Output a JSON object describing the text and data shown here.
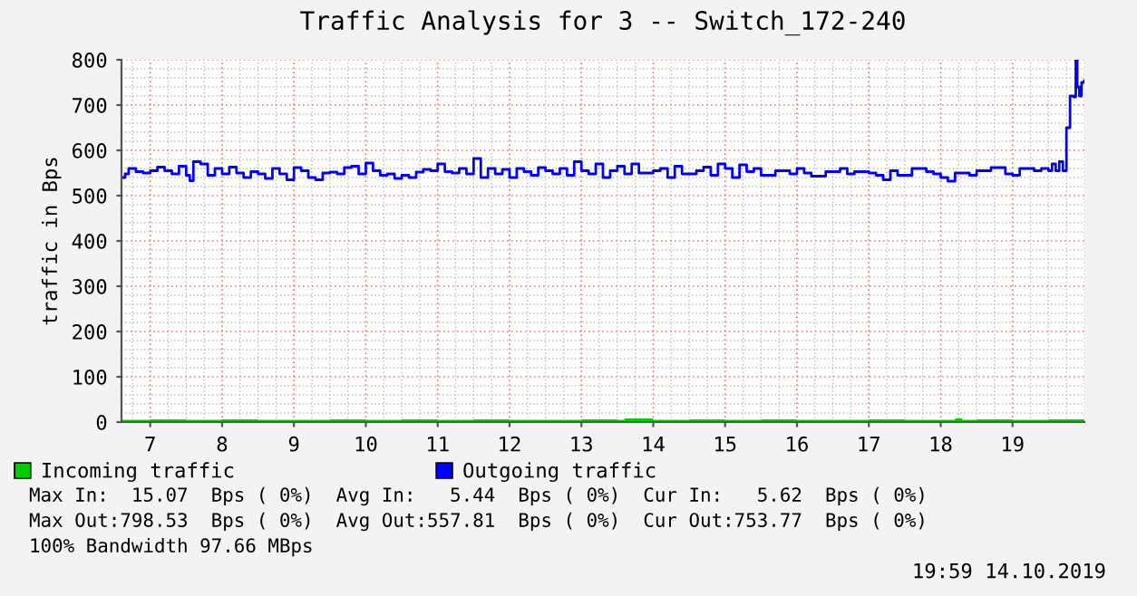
{
  "chart_data": {
    "type": "step",
    "title": "Traffic Analysis for 3 -- Switch_172-240",
    "ylabel": "traffic in Bps",
    "xlim": [
      6.6,
      20.0
    ],
    "xticks": [
      7,
      8,
      9,
      10,
      11,
      12,
      13,
      14,
      15,
      16,
      17,
      18,
      19
    ],
    "ylim": [
      0,
      800
    ],
    "yticks": [
      0,
      100,
      200,
      300,
      400,
      500,
      600,
      700,
      800
    ],
    "grid": true,
    "legend": "bottom left",
    "series": [
      {
        "name": "Incoming traffic",
        "type": "area",
        "color": "#00cc00",
        "x": [
          6.6,
          7.0,
          7.5,
          8.0,
          8.5,
          9.0,
          9.5,
          10.0,
          10.5,
          11.0,
          11.5,
          12.0,
          12.5,
          13.0,
          13.5,
          13.6,
          14.0,
          14.5,
          15.0,
          15.5,
          16.0,
          16.5,
          17.0,
          17.5,
          18.0,
          18.2,
          18.3,
          18.5,
          19.0,
          19.5,
          20.0
        ],
        "values": [
          5,
          6,
          5,
          6,
          5,
          5,
          6,
          5,
          6,
          5,
          6,
          5,
          5,
          6,
          5,
          8,
          5,
          6,
          5,
          6,
          5,
          5,
          6,
          5,
          5,
          8,
          5,
          6,
          5,
          6,
          6
        ]
      },
      {
        "name": "Outgoing traffic",
        "color": "#0000ff",
        "x": [
          6.6,
          6.65,
          6.7,
          6.8,
          6.9,
          7.0,
          7.1,
          7.2,
          7.3,
          7.4,
          7.5,
          7.55,
          7.6,
          7.7,
          7.8,
          7.9,
          8.0,
          8.1,
          8.2,
          8.3,
          8.4,
          8.5,
          8.6,
          8.7,
          8.8,
          8.9,
          9.0,
          9.1,
          9.2,
          9.3,
          9.4,
          9.5,
          9.6,
          9.7,
          9.8,
          9.9,
          10.0,
          10.1,
          10.2,
          10.3,
          10.4,
          10.5,
          10.6,
          10.7,
          10.8,
          10.9,
          11.0,
          11.1,
          11.2,
          11.3,
          11.4,
          11.5,
          11.6,
          11.7,
          11.8,
          11.9,
          12.0,
          12.1,
          12.2,
          12.3,
          12.4,
          12.5,
          12.6,
          12.7,
          12.8,
          12.9,
          13.0,
          13.1,
          13.2,
          13.3,
          13.4,
          13.5,
          13.6,
          13.7,
          13.8,
          14.0,
          14.1,
          14.2,
          14.3,
          14.4,
          14.6,
          14.7,
          14.8,
          14.9,
          15.0,
          15.1,
          15.2,
          15.3,
          15.4,
          15.5,
          15.7,
          15.9,
          16.0,
          16.1,
          16.2,
          16.4,
          16.6,
          16.7,
          16.8,
          17.0,
          17.1,
          17.2,
          17.3,
          17.4,
          17.6,
          17.8,
          17.9,
          18.0,
          18.1,
          18.2,
          18.4,
          18.5,
          18.7,
          18.9,
          19.0,
          19.1,
          19.3,
          19.4,
          19.5,
          19.55,
          19.6,
          19.65,
          19.7,
          19.75,
          19.8,
          19.85,
          19.88,
          19.9,
          19.93,
          19.96,
          20.0
        ],
        "values": [
          540,
          548,
          560,
          553,
          550,
          555,
          563,
          555,
          548,
          565,
          545,
          533,
          575,
          570,
          545,
          560,
          548,
          563,
          550,
          540,
          553,
          548,
          538,
          560,
          548,
          535,
          562,
          555,
          540,
          535,
          550,
          552,
          548,
          562,
          565,
          548,
          572,
          555,
          545,
          548,
          538,
          545,
          540,
          552,
          558,
          555,
          570,
          553,
          550,
          560,
          548,
          582,
          540,
          560,
          548,
          558,
          540,
          560,
          553,
          545,
          562,
          555,
          548,
          560,
          545,
          575,
          555,
          548,
          570,
          540,
          555,
          565,
          548,
          570,
          550,
          555,
          560,
          540,
          565,
          548,
          555,
          563,
          545,
          570,
          560,
          540,
          568,
          553,
          560,
          545,
          555,
          548,
          560,
          550,
          543,
          553,
          560,
          548,
          553,
          550,
          545,
          535,
          555,
          545,
          560,
          553,
          548,
          540,
          532,
          550,
          545,
          555,
          562,
          548,
          545,
          560,
          555,
          560,
          555,
          570,
          555,
          575,
          555,
          650,
          720,
          718,
          800,
          740,
          720,
          750,
          754
        ]
      }
    ],
    "annotations": [
      "Max In:  15.07  Bps ( 0%)  Avg In:   5.44  Bps ( 0%)  Cur In:   5.62  Bps ( 0%)",
      "Max Out:798.53  Bps ( 0%)  Avg Out:557.81  Bps ( 0%)  Cur Out:753.77  Bps ( 0%)",
      "100% Bandwidth 97.66 MBps",
      "19:59 14.10.2019"
    ]
  }
}
